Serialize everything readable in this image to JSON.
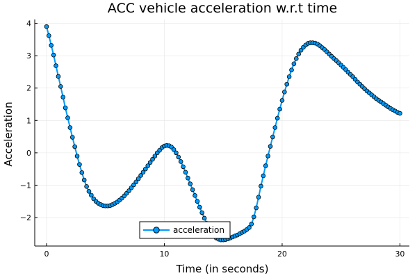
{
  "chart_data": {
    "type": "line",
    "title": "ACC vehicle acceleration w.r.t time",
    "xlabel": "Time (in seconds)",
    "ylabel": "Acceleration",
    "xlim": [
      -1,
      30.8
    ],
    "ylim": [
      -2.88,
      4.12
    ],
    "xticks": [
      0,
      10,
      20,
      30
    ],
    "yticks": [
      -2,
      -1,
      0,
      1,
      2,
      3,
      4
    ],
    "ytick_labels": [
      "−2",
      "−1",
      "0",
      "1",
      "2",
      "3",
      "4"
    ],
    "grid": true,
    "legend_position": "bottom-center",
    "series": [
      {
        "name": "acceleration",
        "color": "#009AFA",
        "marker": "circle",
        "x": [
          0,
          0.2,
          0.4,
          0.6,
          0.8,
          1,
          1.2,
          1.4,
          1.6,
          1.8,
          2,
          2.2,
          2.4,
          2.6,
          2.8,
          3,
          3.2,
          3.4,
          3.6,
          3.8,
          4,
          4.2,
          4.4,
          4.6,
          4.8,
          5,
          5.2,
          5.4,
          5.6,
          5.8,
          6,
          6.2,
          6.4,
          6.6,
          6.8,
          7,
          7.2,
          7.4,
          7.6,
          7.8,
          8,
          8.2,
          8.4,
          8.6,
          8.8,
          9,
          9.2,
          9.4,
          9.6,
          9.8,
          10,
          10.2,
          10.4,
          10.6,
          10.8,
          11,
          11.2,
          11.4,
          11.6,
          11.8,
          12,
          12.2,
          12.4,
          12.6,
          12.8,
          13,
          13.2,
          13.4,
          13.6,
          13.8,
          14,
          14.2,
          14.4,
          14.6,
          14.8,
          15,
          15.2,
          15.4,
          15.6,
          15.8,
          16,
          16.2,
          16.4,
          16.6,
          16.8,
          17,
          17.2,
          17.4,
          17.6,
          17.8,
          18,
          18.2,
          18.4,
          18.6,
          18.8,
          19,
          19.2,
          19.4,
          19.6,
          19.8,
          20,
          20.2,
          20.4,
          20.6,
          20.8,
          21,
          21.2,
          21.4,
          21.6,
          21.8,
          22,
          22.2,
          22.4,
          22.6,
          22.8,
          23,
          23.2,
          23.4,
          23.6,
          23.8,
          24,
          24.2,
          24.4,
          24.6,
          24.8,
          25,
          25.2,
          25.4,
          25.6,
          25.8,
          26,
          26.2,
          26.4,
          26.6,
          26.8,
          27,
          27.2,
          27.4,
          27.6,
          27.8,
          28,
          28.2,
          28.4,
          28.6,
          28.8,
          29,
          29.2,
          29.4,
          29.6,
          29.8,
          30
        ],
        "y": [
          3.9,
          3.62,
          3.32,
          3.02,
          2.69,
          2.36,
          2.05,
          1.72,
          1.39,
          1.08,
          0.78,
          0.48,
          0.19,
          -0.1,
          -0.36,
          -0.61,
          -0.84,
          -1.04,
          -1.19,
          -1.31,
          -1.42,
          -1.5,
          -1.56,
          -1.6,
          -1.63,
          -1.64,
          -1.64,
          -1.63,
          -1.6,
          -1.56,
          -1.52,
          -1.46,
          -1.4,
          -1.33,
          -1.25,
          -1.17,
          -1.08,
          -0.99,
          -0.9,
          -0.8,
          -0.7,
          -0.6,
          -0.5,
          -0.4,
          -0.3,
          -0.2,
          -0.1,
          0,
          0.08,
          0.16,
          0.21,
          0.23,
          0.22,
          0.18,
          0.1,
          0,
          -0.13,
          -0.27,
          -0.43,
          -0.6,
          -0.78,
          -0.96,
          -1.14,
          -1.32,
          -1.5,
          -1.68,
          -1.85,
          -2.02,
          -2.18,
          -2.32,
          -2.45,
          -2.56,
          -2.63,
          -2.67,
          -2.69,
          -2.69,
          -2.68,
          -2.66,
          -2.63,
          -2.6,
          -2.57,
          -2.54,
          -2.5,
          -2.46,
          -2.42,
          -2.37,
          -2.31,
          -2.2,
          -1.98,
          -1.7,
          -1.37,
          -1.03,
          -0.71,
          -0.4,
          -0.1,
          0.2,
          0.49,
          0.78,
          1.07,
          1.35,
          1.62,
          1.88,
          2.12,
          2.35,
          2.56,
          2.75,
          2.91,
          3.05,
          3.17,
          3.26,
          3.33,
          3.38,
          3.4,
          3.4,
          3.39,
          3.36,
          3.31,
          3.25,
          3.19,
          3.12,
          3.05,
          2.98,
          2.91,
          2.85,
          2.78,
          2.71,
          2.64,
          2.57,
          2.49,
          2.42,
          2.35,
          2.27,
          2.19,
          2.12,
          2.05,
          1.98,
          1.91,
          1.85,
          1.79,
          1.73,
          1.67,
          1.62,
          1.57,
          1.52,
          1.47,
          1.42,
          1.37,
          1.33,
          1.29,
          1.25,
          1.22
        ]
      }
    ]
  }
}
